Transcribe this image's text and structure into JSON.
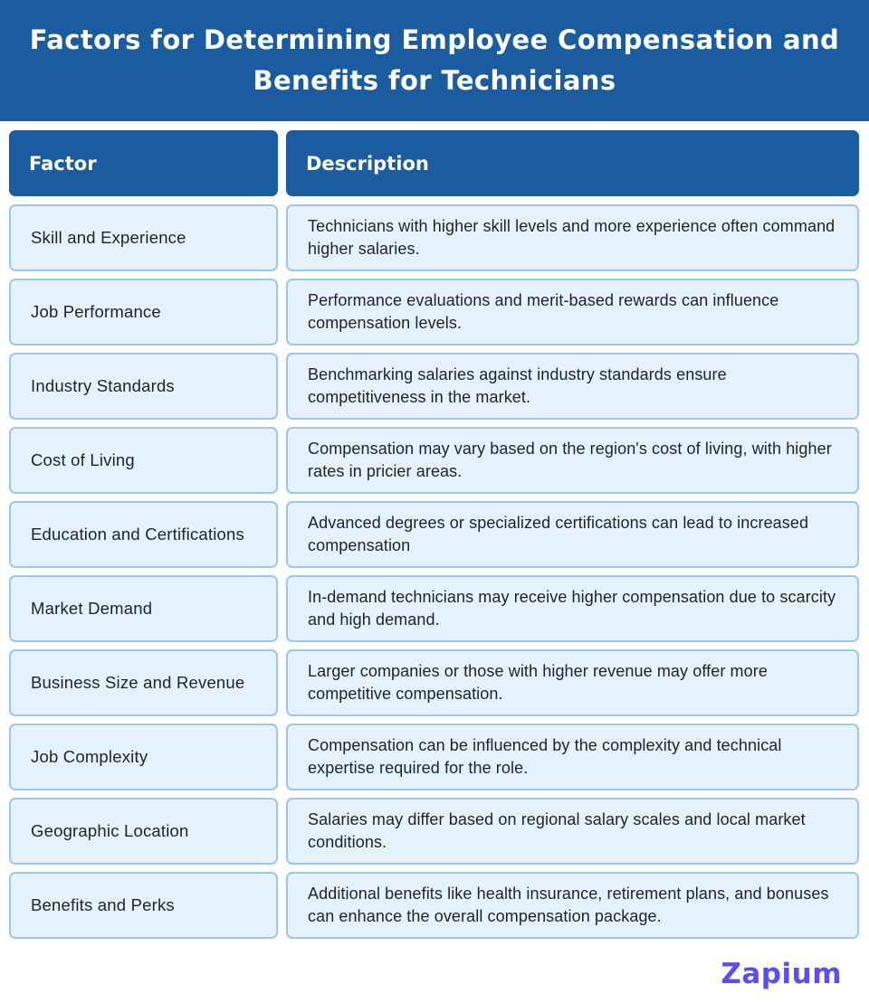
{
  "title": "Factors for Determining Employee Compensation and Benefits for Technicians",
  "table": {
    "headers": {
      "factor": "Factor",
      "description": "Description"
    },
    "rows": [
      {
        "factor": "Skill and Experience",
        "description": "Technicians with higher skill levels and more experience often command higher salaries."
      },
      {
        "factor": "Job Performance",
        "description": "Performance evaluations and merit-based rewards can influence compensation levels."
      },
      {
        "factor": "Industry Standards",
        "description": "Benchmarking salaries against industry standards ensure competitiveness in the market."
      },
      {
        "factor": "Cost of Living",
        "description": "Compensation may vary based on the region's cost of living, with higher rates in pricier areas."
      },
      {
        "factor": "Education and Certifications",
        "description": "Advanced degrees or specialized certifications can lead to increased compensation"
      },
      {
        "factor": "Market Demand",
        "description": "In-demand technicians may receive higher compensation due to scarcity and high demand."
      },
      {
        "factor": "Business Size and Revenue",
        "description": "Larger companies or those with higher revenue may offer more competitive compensation."
      },
      {
        "factor": "Job Complexity",
        "description": "Compensation can be influenced by the complexity and technical expertise required for the role."
      },
      {
        "factor": "Geographic Location",
        "description": "Salaries may differ based on regional salary scales and local market conditions."
      },
      {
        "factor": "Benefits and Perks",
        "description": "Additional benefits like health insurance, retirement plans, and bonuses can enhance the overall compensation package."
      }
    ]
  },
  "logo": {
    "text": "Zapium"
  },
  "colors": {
    "banner": "#1b5b9f",
    "cell_fill": "#e5f1fc",
    "cell_border": "#9dc6ea",
    "logo": "#5b4df0"
  }
}
